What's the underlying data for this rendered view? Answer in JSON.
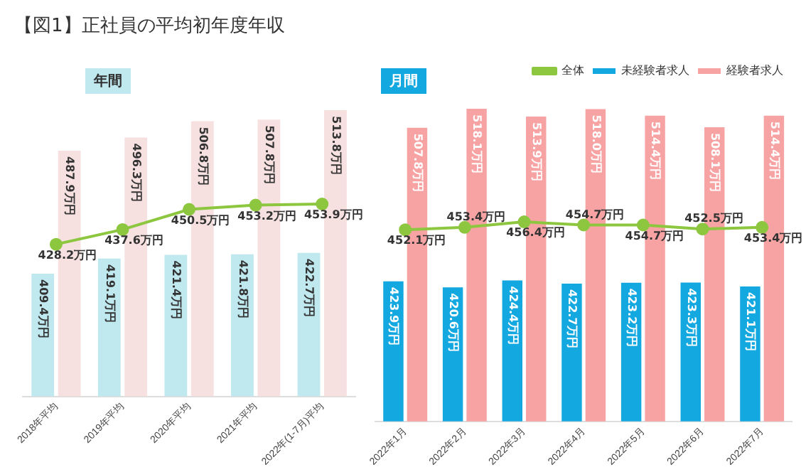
{
  "chart_data": [
    {
      "type": "bar",
      "title": "【図1】正社員の平均初年度年収",
      "subtitle": "年間",
      "categories": [
        "2018年平均",
        "2019年平均",
        "2020年平均",
        "2021年平均",
        "2022年(1-7月)平均"
      ],
      "tick_labels": "x",
      "grid": false,
      "legend": false,
      "marker": "circle",
      "series": [
        {
          "color": "#bfe8ef",
          "values": [
            409.4,
            419.1,
            421.4,
            421.8,
            422.7
          ],
          "value_labels": [
            "409.4万円",
            "419.1万円",
            "421.4万円",
            "421.8万円",
            "422.7万円"
          ]
        },
        {
          "color": "#f6e0e0",
          "values": [
            487.9,
            496.3,
            506.8,
            507.8,
            513.8
          ],
          "value_labels": [
            "487.9万円",
            "496.3万円",
            "506.8万円",
            "507.8万円",
            "513.8万円"
          ]
        },
        {
          "type": "line",
          "color": "#8dc63f",
          "values": [
            428.2,
            437.6,
            450.5,
            453.2,
            453.9
          ],
          "value_labels": [
            "428.2万円",
            "437.6万円",
            "450.5万円",
            "453.2万円",
            "453.9万円"
          ]
        }
      ]
    },
    {
      "type": "bar",
      "title": "月間",
      "categories": [
        "2022年1月",
        "2022年2月",
        "2022年3月",
        "2022年4月",
        "2022年5月",
        "2022年6月",
        "2022年7月"
      ],
      "tick_labels": "x",
      "grid": false,
      "legend": "top right",
      "marker": "circle",
      "series": [
        {
          "name": "未経験者求人",
          "color": "#14a8e0",
          "values": [
            423.9,
            420.6,
            424.4,
            422.7,
            423.2,
            423.3,
            421.1
          ],
          "value_labels": [
            "423.9万円",
            "420.6万円",
            "424.4万円",
            "422.7万円",
            "423.2万円",
            "423.3万円",
            "421.1万円"
          ]
        },
        {
          "name": "経験者求人",
          "color": "#f8a3a3",
          "values": [
            507.8,
            518.1,
            513.9,
            518.0,
            514.4,
            508.1,
            514.4
          ],
          "value_labels": [
            "507.8万円",
            "518.1万円",
            "513.9万円",
            "518.0万円",
            "514.4万円",
            "508.1万円",
            "514.4万円"
          ]
        },
        {
          "type": "line",
          "name": "全体",
          "color": "#8dc63f",
          "values": [
            452.1,
            453.4,
            456.4,
            454.7,
            454.7,
            452.5,
            453.4
          ],
          "value_labels": [
            "452.1万円",
            "453.4万円",
            "456.4万円",
            "454.7万円",
            "454.7万円",
            "452.5万円",
            "453.4万円"
          ]
        }
      ]
    }
  ]
}
